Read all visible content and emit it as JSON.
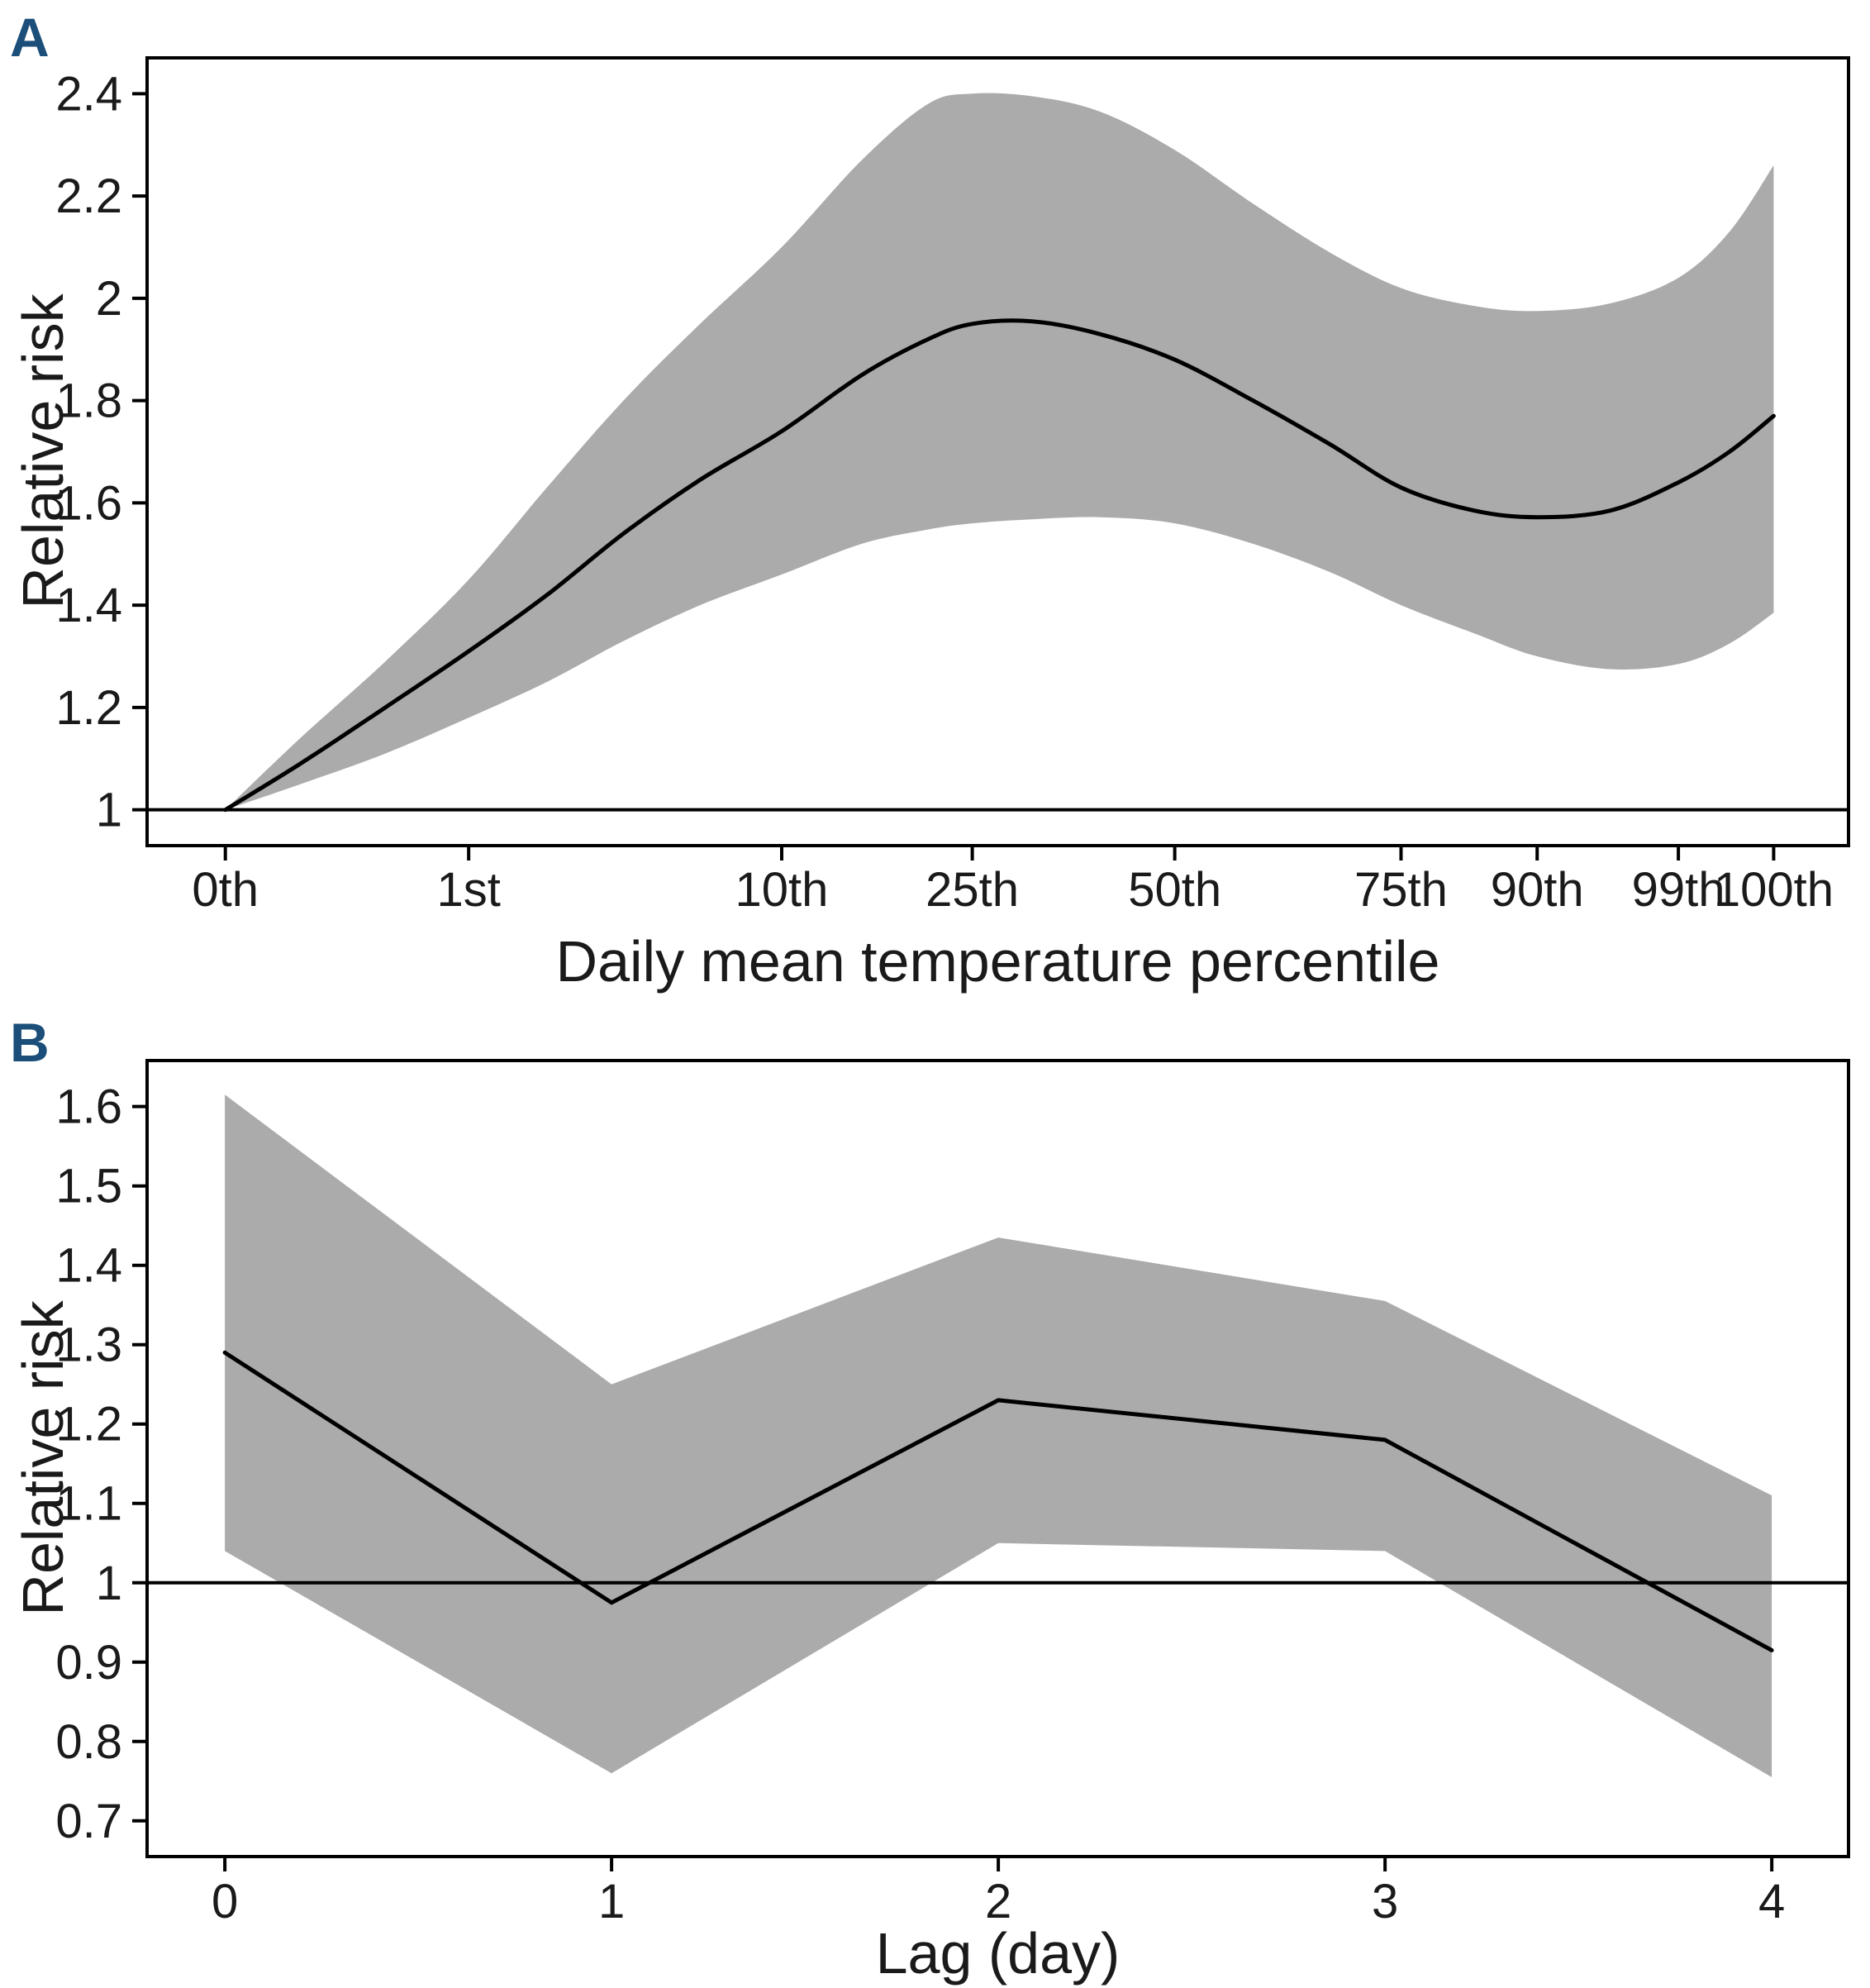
{
  "figure": {
    "background": "#ffffff",
    "band_color": "#ababab",
    "line_color": "#000000",
    "axis_color": "#1a1a1a",
    "panel_label_color": "#1b4e79"
  },
  "chart_data": [
    {
      "id": "A",
      "panel_label": "A",
      "type": "line",
      "band": "95% confidence interval ribbon",
      "smooth": true,
      "xlabel": "Daily mean temperature percentile",
      "ylabel": "Relative risk",
      "ylim": [
        0.93,
        2.47
      ],
      "reference_line_y": 1,
      "grid": "off",
      "legend": "none",
      "x_ticks": [
        {
          "label": "0th",
          "pos": 0.046
        },
        {
          "label": "1st",
          "pos": 0.189
        },
        {
          "label": "10th",
          "pos": 0.373
        },
        {
          "label": "25th",
          "pos": 0.485
        },
        {
          "label": "50th",
          "pos": 0.604
        },
        {
          "label": "75th",
          "pos": 0.737
        },
        {
          "label": "90th",
          "pos": 0.817
        },
        {
          "label": "99th",
          "pos": 0.9
        },
        {
          "label": "100th",
          "pos": 0.956
        }
      ],
      "y_ticks": [
        {
          "label": "1",
          "value": 1.0
        },
        {
          "label": "1.2",
          "value": 1.2
        },
        {
          "label": "1.4",
          "value": 1.4
        },
        {
          "label": "1.6",
          "value": 1.6
        },
        {
          "label": "1.8",
          "value": 1.8
        },
        {
          "label": "2",
          "value": 2.0
        },
        {
          "label": "2.2",
          "value": 2.2
        },
        {
          "label": "2.4",
          "value": 2.4
        }
      ],
      "series": {
        "pos": [
          0.046,
          0.09,
          0.14,
          0.189,
          0.235,
          0.28,
          0.325,
          0.373,
          0.42,
          0.459,
          0.485,
          0.52,
          0.56,
          0.604,
          0.65,
          0.695,
          0.737,
          0.78,
          0.817,
          0.86,
          0.9,
          0.93,
          0.956
        ],
        "mid": [
          1.0,
          1.09,
          1.2,
          1.31,
          1.42,
          1.54,
          1.645,
          1.74,
          1.85,
          1.92,
          1.95,
          1.955,
          1.93,
          1.88,
          1.8,
          1.715,
          1.63,
          1.585,
          1.572,
          1.585,
          1.64,
          1.7,
          1.77
        ],
        "upper": [
          1.0,
          1.14,
          1.29,
          1.45,
          1.63,
          1.8,
          1.95,
          2.1,
          2.27,
          2.38,
          2.4,
          2.395,
          2.365,
          2.29,
          2.185,
          2.09,
          2.02,
          1.985,
          1.975,
          1.99,
          2.04,
          2.13,
          2.26
        ],
        "lower": [
          1.0,
          1.05,
          1.11,
          1.18,
          1.25,
          1.33,
          1.4,
          1.46,
          1.52,
          1.548,
          1.56,
          1.568,
          1.572,
          1.56,
          1.52,
          1.465,
          1.4,
          1.345,
          1.3,
          1.275,
          1.285,
          1.325,
          1.385
        ]
      }
    },
    {
      "id": "B",
      "panel_label": "B",
      "type": "line",
      "band": "95% confidence interval ribbon",
      "smooth": false,
      "xlabel": "Lag (day)",
      "ylabel": "Relative risk",
      "ylim": [
        0.655,
        1.658
      ],
      "reference_line_y": 1,
      "grid": "off",
      "legend": "none",
      "x_ticks": [
        {
          "label": "0",
          "pos": 0.0457
        },
        {
          "label": "1",
          "pos": 0.273
        },
        {
          "label": "2",
          "pos": 0.5003
        },
        {
          "label": "3",
          "pos": 0.7276
        },
        {
          "label": "4",
          "pos": 0.9549
        }
      ],
      "y_ticks": [
        {
          "label": "0.7",
          "value": 0.7
        },
        {
          "label": "0.8",
          "value": 0.8
        },
        {
          "label": "0.9",
          "value": 0.9
        },
        {
          "label": "1",
          "value": 1.0
        },
        {
          "label": "1.1",
          "value": 1.1
        },
        {
          "label": "1.2",
          "value": 1.2
        },
        {
          "label": "1.3",
          "value": 1.3
        },
        {
          "label": "1.4",
          "value": 1.4
        },
        {
          "label": "1.5",
          "value": 1.5
        },
        {
          "label": "1.6",
          "value": 1.6
        }
      ],
      "lags": [
        0,
        1,
        2,
        3,
        4
      ],
      "series": {
        "pos": [
          0.0457,
          0.273,
          0.5003,
          0.7276,
          0.9549
        ],
        "mid": [
          1.29,
          0.975,
          1.23,
          1.18,
          0.915
        ],
        "upper": [
          1.615,
          1.25,
          1.435,
          1.355,
          1.11
        ],
        "lower": [
          1.04,
          0.76,
          1.05,
          1.04,
          0.755
        ]
      }
    }
  ]
}
